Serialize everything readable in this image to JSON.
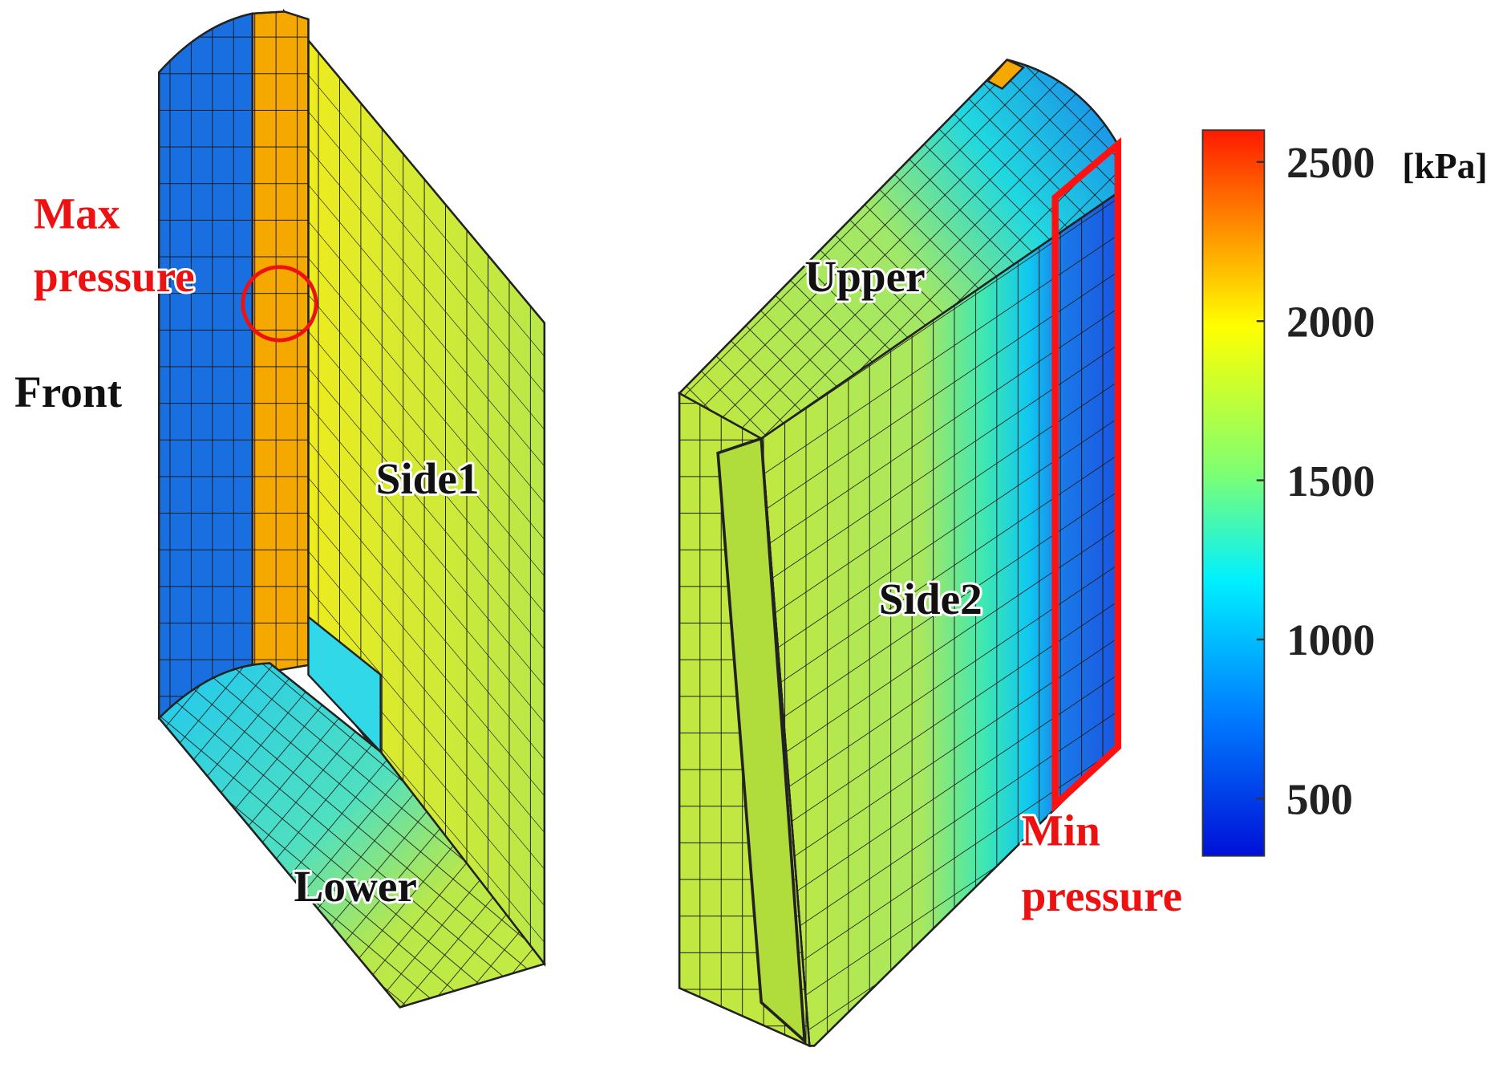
{
  "left_view": {
    "max_label": [
      "Max",
      "pressure"
    ],
    "face_labels": [
      "Front",
      "Side1",
      "Lower"
    ]
  },
  "right_view": {
    "face_labels": [
      "Upper",
      "Side2"
    ],
    "min_label": [
      "Min",
      "pressure"
    ]
  },
  "colorbar": {
    "unit": "[kPa]",
    "range": [
      320,
      2600
    ],
    "ticks": [
      500,
      1000,
      1500,
      2000,
      2500
    ]
  }
}
